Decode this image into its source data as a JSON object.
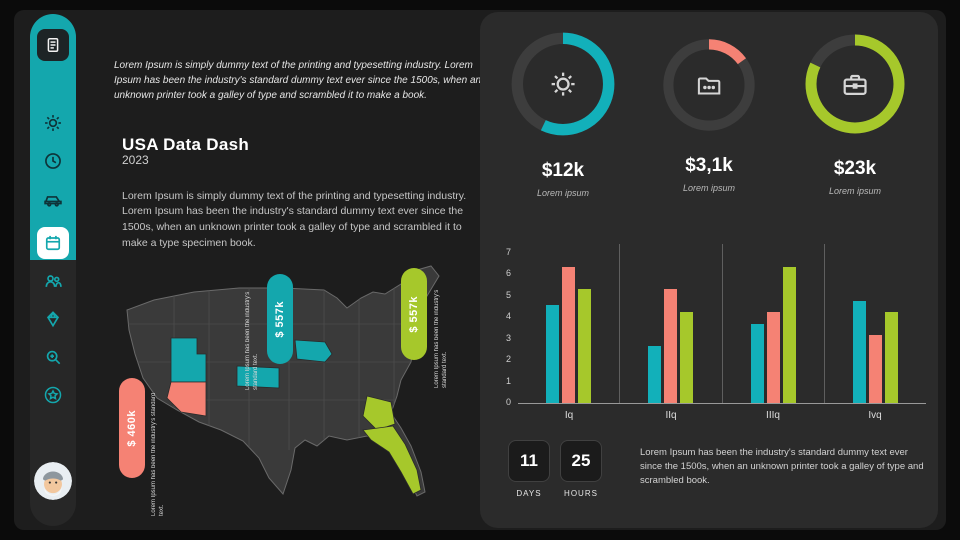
{
  "colors": {
    "teal": "#14a7ad",
    "salmon": "#f58274",
    "green": "#a6c82b",
    "slide_bg": "#1d1d1d",
    "card_bg": "#2b2b2b"
  },
  "sidebar": {
    "items": [
      {
        "icon": "document-icon"
      },
      {
        "icon": "gear-icon"
      },
      {
        "icon": "clock-icon"
      },
      {
        "icon": "car-icon"
      },
      {
        "icon": "calendar-icon",
        "active": true
      },
      {
        "icon": "users-icon"
      },
      {
        "icon": "diamond-icon"
      },
      {
        "icon": "zoom-in-icon"
      },
      {
        "icon": "star-icon"
      }
    ],
    "avatar": "user-avatar"
  },
  "header": {
    "intro": "Lorem Ipsum is simply dummy text of the printing and typesetting industry. Lorem Ipsum has been the industry's standard dummy text ever since the 1500s, when an unknown printer took a galley of type and scrambled it to make a book.",
    "title": "USA Data Dash",
    "year": "2023",
    "body": "Lorem Ipsum is simply dummy text of the printing and typesetting industry. Lorem Ipsum has been the industry's standard dummy text ever since the 1500s, when an unknown printer took a galley of type and scrambled it to make a type specimen book."
  },
  "map": {
    "labels": [
      {
        "text": "$ 460k",
        "caption": "Lorem Ipsum has been the industry's standard text.",
        "color": "#f58274"
      },
      {
        "text": "$ 557k",
        "caption": "Lorem Ipsum has been the industry's standard text.",
        "color": "#14a7ad"
      },
      {
        "text": "$ 557k",
        "caption": "Lorem Ipsum has been the industry's standard text.",
        "color": "#a6c82b"
      }
    ]
  },
  "chart_data": [
    {
      "type": "bar",
      "title": "",
      "categories": [
        "Iq",
        "IIq",
        "IIIq",
        "Ivq"
      ],
      "series": [
        {
          "name": "teal",
          "color": "#12b0ba",
          "values": [
            4.3,
            2.5,
            3.5,
            4.5
          ]
        },
        {
          "name": "salmon",
          "color": "#f58274",
          "values": [
            6,
            5,
            4,
            3
          ]
        },
        {
          "name": "green",
          "color": "#a6c82b",
          "values": [
            5,
            4,
            6,
            4
          ]
        }
      ],
      "ylim": [
        0,
        7
      ],
      "yticks": [
        0,
        1,
        2,
        3,
        4,
        5,
        6,
        7
      ],
      "grid": false,
      "legend": false
    },
    {
      "type": "donut-kpi",
      "rings": [
        {
          "value": "$12k",
          "caption": "Lorem ipsum",
          "pct": 57,
          "color": "#12b0ba",
          "icon": "gear-icon"
        },
        {
          "value": "$3,1k",
          "caption": "Lorem ipsum",
          "pct": 15,
          "color": "#f58274",
          "icon": "folder-icon"
        },
        {
          "value": "$23k",
          "caption": "Lorem ipsum",
          "pct": 82,
          "color": "#a6c82b",
          "icon": "briefcase-icon"
        }
      ]
    }
  ],
  "countdown": {
    "days": "11",
    "days_label": "DAYS",
    "hours": "25",
    "hours_label": "HOURS"
  },
  "footer_text": "Lorem Ipsum has been the industry's standard dummy text ever since the 1500s, when an unknown printer took a galley of type and scrambled book."
}
